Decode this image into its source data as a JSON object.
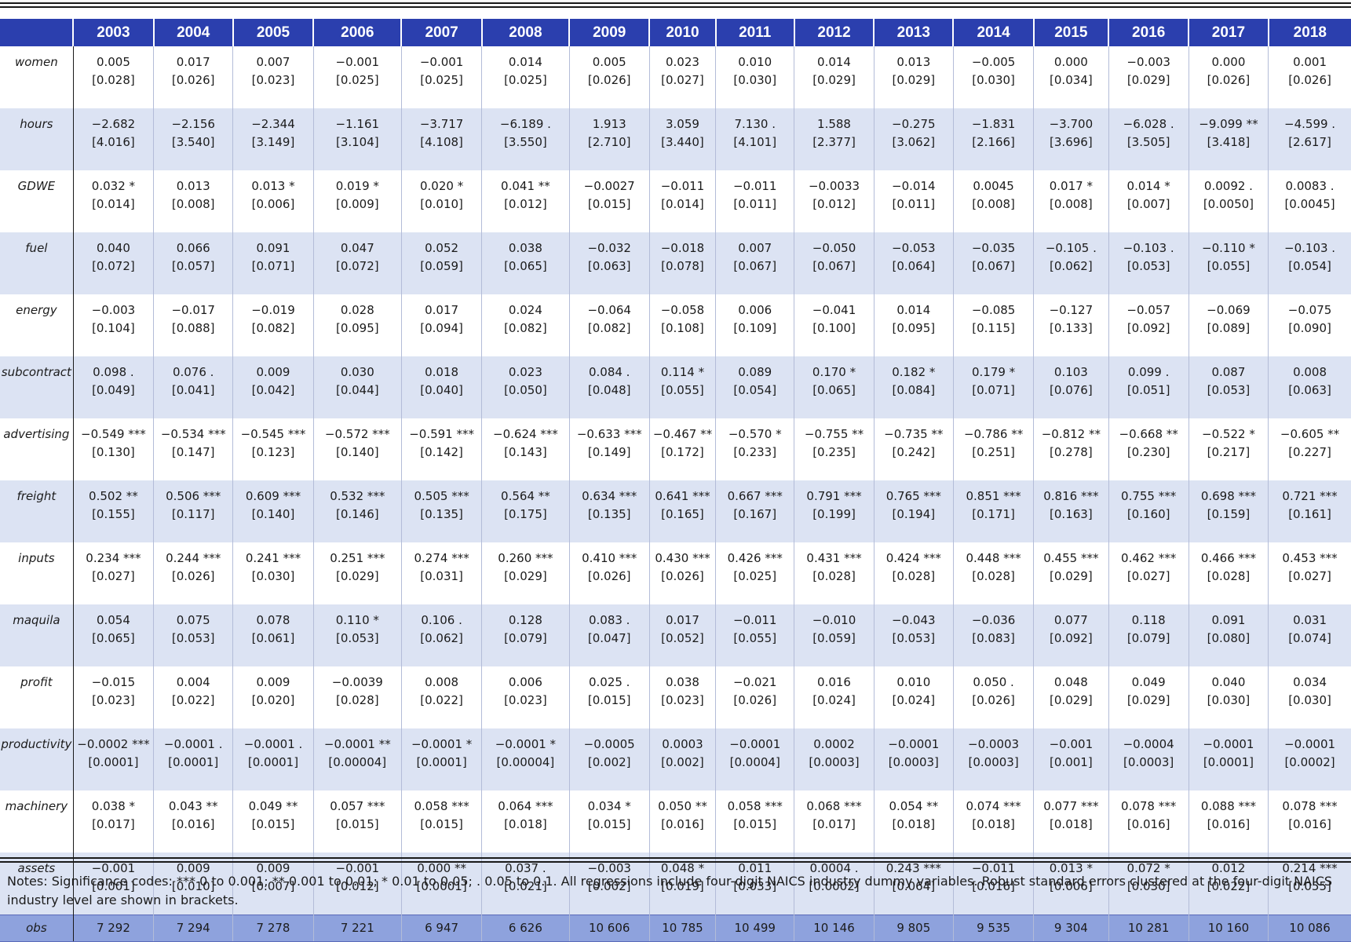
{
  "table": {
    "header": [
      "",
      "2003",
      "2004",
      "2005",
      "2006",
      "2007",
      "2008",
      "2009",
      "2010",
      "2011",
      "2012",
      "2013",
      "2014",
      "2015",
      "2016",
      "2017",
      "2018"
    ],
    "rows": [
      {
        "label": "women",
        "coef": [
          "0.005",
          "0.017",
          "0.007",
          "−0.001",
          "−0.001",
          "0.014",
          "0.005",
          "0.023",
          "0.010",
          "0.014",
          "0.013",
          "−0.005",
          "0.000",
          "−0.003",
          "0.000",
          "0.001"
        ],
        "se": [
          "[0.028]",
          "[0.026]",
          "[0.023]",
          "[0.025]",
          "[0.025]",
          "[0.025]",
          "[0.026]",
          "[0.027]",
          "[0.030]",
          "[0.029]",
          "[0.029]",
          "[0.030]",
          "[0.034]",
          "[0.029]",
          "[0.026]",
          "[0.026]"
        ]
      },
      {
        "label": "hours",
        "coef": [
          "−2.682",
          "−2.156",
          "−2.344",
          "−1.161",
          "−3.717",
          "−6.189 .",
          "1.913",
          "3.059",
          "7.130 .",
          "1.588",
          "−0.275",
          "−1.831",
          "−3.700",
          "−6.028 .",
          "−9.099 **",
          "−4.599 ."
        ],
        "se": [
          "[4.016]",
          "[3.540]",
          "[3.149]",
          "[3.104]",
          "[4.108]",
          "[3.550]",
          "[2.710]",
          "[3.440]",
          "[4.101]",
          "[2.377]",
          "[3.062]",
          "[2.166]",
          "[3.696]",
          "[3.505]",
          "[3.418]",
          "[2.617]"
        ]
      },
      {
        "label": "GDWE",
        "coef": [
          "0.032 *",
          "0.013",
          "0.013 *",
          "0.019 *",
          "0.020 *",
          "0.041 **",
          "−0.0027",
          "−0.011",
          "−0.011",
          "−0.0033",
          "−0.014",
          "0.0045",
          "0.017 *",
          "0.014 *",
          "0.0092 .",
          "0.0083 ."
        ],
        "se": [
          "[0.014]",
          "[0.008]",
          "[0.006]",
          "[0.009]",
          "[0.010]",
          "[0.012]",
          "[0.015]",
          "[0.014]",
          "[0.011]",
          "[0.012]",
          "[0.011]",
          "[0.008]",
          "[0.008]",
          "[0.007]",
          "[0.0050]",
          "[0.0045]"
        ]
      },
      {
        "label": "fuel",
        "coef": [
          "0.040",
          "0.066",
          "0.091",
          "0.047",
          "0.052",
          "0.038",
          "−0.032",
          "−0.018",
          "0.007",
          "−0.050",
          "−0.053",
          "−0.035",
          "−0.105 .",
          "−0.103 .",
          "−0.110 *",
          "−0.103 ."
        ],
        "se": [
          "[0.072]",
          "[0.057]",
          "[0.071]",
          "[0.072]",
          "[0.059]",
          "[0.065]",
          "[0.063]",
          "[0.078]",
          "[0.067]",
          "[0.067]",
          "[0.064]",
          "[0.067]",
          "[0.062]",
          "[0.053]",
          "[0.055]",
          "[0.054]"
        ]
      },
      {
        "label": "energy",
        "coef": [
          "−0.003",
          "−0.017",
          "−0.019",
          "0.028",
          "0.017",
          "0.024",
          "−0.064",
          "−0.058",
          "0.006",
          "−0.041",
          "0.014",
          "−0.085",
          "−0.127",
          "−0.057",
          "−0.069",
          "−0.075"
        ],
        "se": [
          "[0.104]",
          "[0.088]",
          "[0.082]",
          "[0.095]",
          "[0.094]",
          "[0.082]",
          "[0.082]",
          "[0.108]",
          "[0.109]",
          "[0.100]",
          "[0.095]",
          "[0.115]",
          "[0.133]",
          "[0.092]",
          "[0.089]",
          "[0.090]"
        ]
      },
      {
        "label": "subcontract",
        "coef": [
          "0.098 .",
          "0.076 .",
          "0.009",
          "0.030",
          "0.018",
          "0.023",
          "0.084 .",
          "0.114 *",
          "0.089",
          "0.170 *",
          "0.182 *",
          "0.179 *",
          "0.103",
          "0.099 .",
          "0.087",
          "0.008"
        ],
        "se": [
          "[0.049]",
          "[0.041]",
          "[0.042]",
          "[0.044]",
          "[0.040]",
          "[0.050]",
          "[0.048]",
          "[0.055]",
          "[0.054]",
          "[0.065]",
          "[0.084]",
          "[0.071]",
          "[0.076]",
          "[0.051]",
          "[0.053]",
          "[0.063]"
        ]
      },
      {
        "label": "advertising",
        "coef": [
          "−0.549 ***",
          "−0.534 ***",
          "−0.545 ***",
          "−0.572 ***",
          "−0.591 ***",
          "−0.624 ***",
          "−0.633 ***",
          "−0.467 **",
          "−0.570 *",
          "−0.755 **",
          "−0.735 **",
          "−0.786 **",
          "−0.812 **",
          "−0.668 **",
          "−0.522 *",
          "−0.605 **"
        ],
        "se": [
          "[0.130]",
          "[0.147]",
          "[0.123]",
          "[0.140]",
          "[0.142]",
          "[0.143]",
          "[0.149]",
          "[0.172]",
          "[0.233]",
          "[0.235]",
          "[0.242]",
          "[0.251]",
          "[0.278]",
          "[0.230]",
          "[0.217]",
          "[0.227]"
        ]
      },
      {
        "label": "freight",
        "coef": [
          "0.502 **",
          "0.506 ***",
          "0.609 ***",
          "0.532 ***",
          "0.505 ***",
          "0.564 **",
          "0.634 ***",
          "0.641 ***",
          "0.667 ***",
          "0.791 ***",
          "0.765 ***",
          "0.851 ***",
          "0.816 ***",
          "0.755 ***",
          "0.698 ***",
          "0.721 ***"
        ],
        "se": [
          "[0.155]",
          "[0.117]",
          "[0.140]",
          "[0.146]",
          "[0.135]",
          "[0.175]",
          "[0.135]",
          "[0.165]",
          "[0.167]",
          "[0.199]",
          "[0.194]",
          "[0.171]",
          "[0.163]",
          "[0.160]",
          "[0.159]",
          "[0.161]"
        ]
      },
      {
        "label": "inputs",
        "coef": [
          "0.234 ***",
          "0.244 ***",
          "0.241 ***",
          "0.251 ***",
          "0.274 ***",
          "0.260 ***",
          "0.410 ***",
          "0.430 ***",
          "0.426 ***",
          "0.431 ***",
          "0.424 ***",
          "0.448 ***",
          "0.455 ***",
          "0.462 ***",
          "0.466 ***",
          "0.453 ***"
        ],
        "se": [
          "[0.027]",
          "[0.026]",
          "[0.030]",
          "[0.029]",
          "[0.031]",
          "[0.029]",
          "[0.026]",
          "[0.026]",
          "[0.025]",
          "[0.028]",
          "[0.028]",
          "[0.028]",
          "[0.029]",
          "[0.027]",
          "[0.028]",
          "[0.027]"
        ]
      },
      {
        "label": "maquila",
        "coef": [
          "0.054",
          "0.075",
          "0.078",
          "0.110 *",
          "0.106 .",
          "0.128",
          "0.083 .",
          "0.017",
          "−0.011",
          "−0.010",
          "−0.043",
          "−0.036",
          "0.077",
          "0.118",
          "0.091",
          "0.031"
        ],
        "se": [
          "[0.065]",
          "[0.053]",
          "[0.061]",
          "[0.053]",
          "[0.062]",
          "[0.079]",
          "[0.047]",
          "[0.052]",
          "[0.055]",
          "[0.059]",
          "[0.053]",
          "[0.083]",
          "[0.092]",
          "[0.079]",
          "[0.080]",
          "[0.074]"
        ]
      },
      {
        "label": "profit",
        "coef": [
          "−0.015",
          "0.004",
          "0.009",
          "−0.0039",
          "0.008",
          "0.006",
          "0.025 .",
          "0.038",
          "−0.021",
          "0.016",
          "0.010",
          "0.050 .",
          "0.048",
          "0.049",
          "0.040",
          "0.034"
        ],
        "se": [
          "[0.023]",
          "[0.022]",
          "[0.020]",
          "[0.028]",
          "[0.022]",
          "[0.023]",
          "[0.015]",
          "[0.023]",
          "[0.026]",
          "[0.024]",
          "[0.024]",
          "[0.026]",
          "[0.029]",
          "[0.029]",
          "[0.030]",
          "[0.030]"
        ]
      },
      {
        "label": "productivity",
        "coef": [
          "−0.0002 ***",
          "−0.0001 .",
          "−0.0001 .",
          "−0.0001 **",
          "−0.0001 *",
          "−0.0001 *",
          "−0.0005",
          "0.0003",
          "−0.0001",
          "0.0002",
          "−0.0001",
          "−0.0003",
          "−0.001",
          "−0.0004",
          "−0.0001",
          "−0.0001"
        ],
        "se": [
          "[0.0001]",
          "[0.0001]",
          "[0.0001]",
          "[0.00004]",
          "[0.0001]",
          "[0.00004]",
          "[0.002]",
          "[0.002]",
          "[0.0004]",
          "[0.0003]",
          "[0.0003]",
          "[0.0003]",
          "[0.001]",
          "[0.0003]",
          "[0.0001]",
          "[0.0002]"
        ]
      },
      {
        "label": "machinery",
        "coef": [
          "0.038 *",
          "0.043 **",
          "0.049 **",
          "0.057 ***",
          "0.058 ***",
          "0.064 ***",
          "0.034 *",
          "0.050 **",
          "0.058 ***",
          "0.068 ***",
          "0.054 **",
          "0.074 ***",
          "0.077 ***",
          "0.078 ***",
          "0.088 ***",
          "0.078 ***"
        ],
        "se": [
          "[0.017]",
          "[0.016]",
          "[0.015]",
          "[0.015]",
          "[0.015]",
          "[0.018]",
          "[0.015]",
          "[0.016]",
          "[0.015]",
          "[0.017]",
          "[0.018]",
          "[0.018]",
          "[0.018]",
          "[0.016]",
          "[0.016]",
          "[0.016]"
        ]
      },
      {
        "label": "assets",
        "coef": [
          "−0.001",
          "0.009",
          "0.009",
          "−0.001",
          "0.000 **",
          "0.037 .",
          "−0.003",
          "0.048 *",
          "0.011",
          "0.0004 .",
          "0.243 ***",
          "−0.011",
          "0.013 *",
          "0.072 *",
          "0.012",
          "0.214 ***"
        ],
        "se": [
          "[0.001]",
          "[0.010]",
          "[0.007]",
          "[0.012]",
          "[0.0001]",
          "[0.021]",
          "[0.002]",
          "[0.019]",
          "[0.033]",
          "[0.0002]",
          "[0.064]",
          "[0.016]",
          "[0.006]",
          "[0.030]",
          "[0.022]",
          "[0.055]"
        ]
      }
    ],
    "obs": {
      "label": "obs",
      "values": [
        "7 292",
        "7 294",
        "7 278",
        "7 221",
        "6 947",
        "6 626",
        "10 606",
        "10 785",
        "10 499",
        "10 146",
        "9 805",
        "9 535",
        "9 304",
        "10 281",
        "10 160",
        "10 086"
      ]
    }
  },
  "notes": "Notes: Significance codes: *** 0 to 0.001; ** 0.001 to 0.01; * 0.01 to 0.05; . 0.05 to 0.1. All regressions include four-digit NAICS industry dummy variables. Robust standard errors clustered at the four-digit NAICS industry level are shown in brackets."
}
